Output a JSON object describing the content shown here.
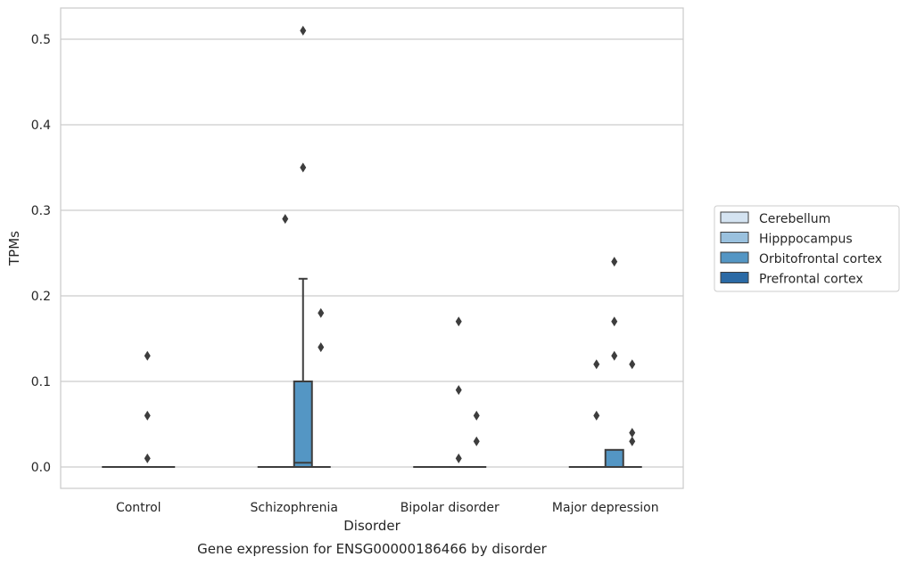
{
  "chart_data": {
    "type": "box",
    "caption": "Gene expression for ENSG00000186466 by disorder",
    "xlabel": "Disorder",
    "ylabel": "TPMs",
    "ylim": [
      -0.025,
      0.537
    ],
    "yticks": [
      0.0,
      0.1,
      0.2,
      0.3,
      0.4,
      0.5
    ],
    "ytick_labels": [
      "0.0",
      "0.1",
      "0.2",
      "0.3",
      "0.4",
      "0.5"
    ],
    "grid": "horizontal",
    "legend_position": "right",
    "categories": [
      "Control",
      "Schizophrenia",
      "Bipolar disorder",
      "Major depression"
    ],
    "series": [
      {
        "name": "Cerebellum",
        "color": "#d4e3f1",
        "boxes": [
          {
            "category": "Control",
            "min": 0,
            "q1": 0,
            "median": 0,
            "q3": 0,
            "max": 0,
            "outliers": []
          },
          {
            "category": "Schizophrenia",
            "min": 0,
            "q1": 0,
            "median": 0,
            "q3": 0,
            "max": 0,
            "outliers": []
          },
          {
            "category": "Bipolar disorder",
            "min": 0,
            "q1": 0,
            "median": 0,
            "q3": 0,
            "max": 0,
            "outliers": []
          },
          {
            "category": "Major depression",
            "min": 0,
            "q1": 0,
            "median": 0,
            "q3": 0,
            "max": 0,
            "outliers": []
          }
        ]
      },
      {
        "name": "Hipppocampus",
        "color": "#9ac1de",
        "boxes": [
          {
            "category": "Control",
            "min": 0,
            "q1": 0,
            "median": 0,
            "q3": 0,
            "max": 0,
            "outliers": []
          },
          {
            "category": "Schizophrenia",
            "min": 0,
            "q1": 0,
            "median": 0,
            "q3": 0,
            "max": 0,
            "outliers": [
              0.29
            ]
          },
          {
            "category": "Bipolar disorder",
            "min": 0,
            "q1": 0,
            "median": 0,
            "q3": 0,
            "max": 0,
            "outliers": []
          },
          {
            "category": "Major depression",
            "min": 0,
            "q1": 0,
            "median": 0,
            "q3": 0,
            "max": 0,
            "outliers": [
              0.12,
              0.06
            ]
          }
        ]
      },
      {
        "name": "Orbitofrontal cortex",
        "color": "#5496c4",
        "boxes": [
          {
            "category": "Control",
            "min": 0,
            "q1": 0,
            "median": 0,
            "q3": 0,
            "max": 0,
            "outliers": [
              0.13,
              0.06,
              0.01
            ]
          },
          {
            "category": "Schizophrenia",
            "min": 0,
            "q1": 0,
            "median": 0.005,
            "q3": 0.1,
            "max": 0.22,
            "outliers": [
              0.51,
              0.35
            ]
          },
          {
            "category": "Bipolar disorder",
            "min": 0,
            "q1": 0,
            "median": 0,
            "q3": 0,
            "max": 0,
            "outliers": [
              0.17,
              0.09,
              0.01
            ]
          },
          {
            "category": "Major depression",
            "min": 0,
            "q1": 0,
            "median": 0,
            "q3": 0.02,
            "max": 0.02,
            "outliers": [
              0.24,
              0.17,
              0.13
            ]
          }
        ]
      },
      {
        "name": "Prefrontal cortex",
        "color": "#2b6aa5",
        "boxes": [
          {
            "category": "Control",
            "min": 0,
            "q1": 0,
            "median": 0,
            "q3": 0,
            "max": 0,
            "outliers": []
          },
          {
            "category": "Schizophrenia",
            "min": 0,
            "q1": 0,
            "median": 0,
            "q3": 0,
            "max": 0,
            "outliers": [
              0.18,
              0.14
            ]
          },
          {
            "category": "Bipolar disorder",
            "min": 0,
            "q1": 0,
            "median": 0,
            "q3": 0,
            "max": 0,
            "outliers": [
              0.06,
              0.03
            ]
          },
          {
            "category": "Major depression",
            "min": 0,
            "q1": 0,
            "median": 0,
            "q3": 0,
            "max": 0,
            "outliers": [
              0.12,
              0.04,
              0.03
            ]
          }
        ]
      }
    ]
  }
}
